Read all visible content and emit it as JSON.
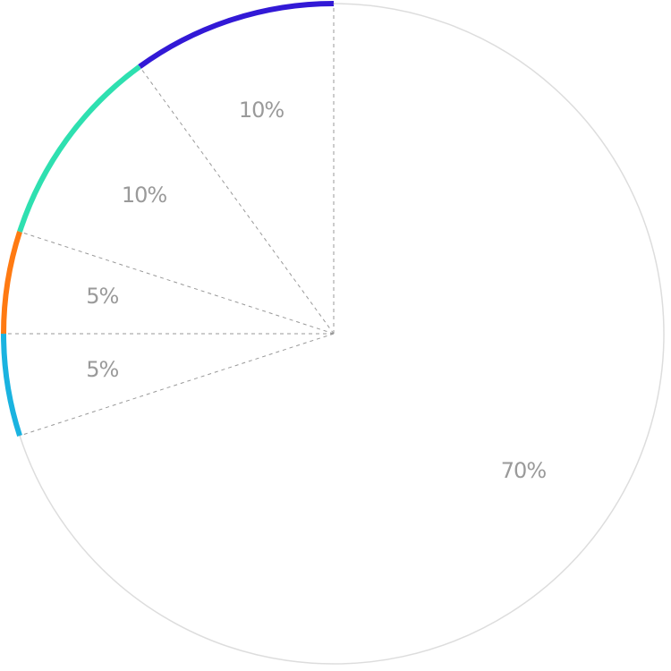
{
  "chart_data": {
    "type": "pie",
    "values": [
      70,
      5,
      5,
      10,
      10
    ],
    "value_labels": [
      "70%",
      "5%",
      "5%",
      "10%",
      "10%"
    ],
    "colors": [
      "#dddddd",
      "#1ab3e0",
      "#ff7a12",
      "#2ee0b0",
      "#3219d6"
    ]
  }
}
